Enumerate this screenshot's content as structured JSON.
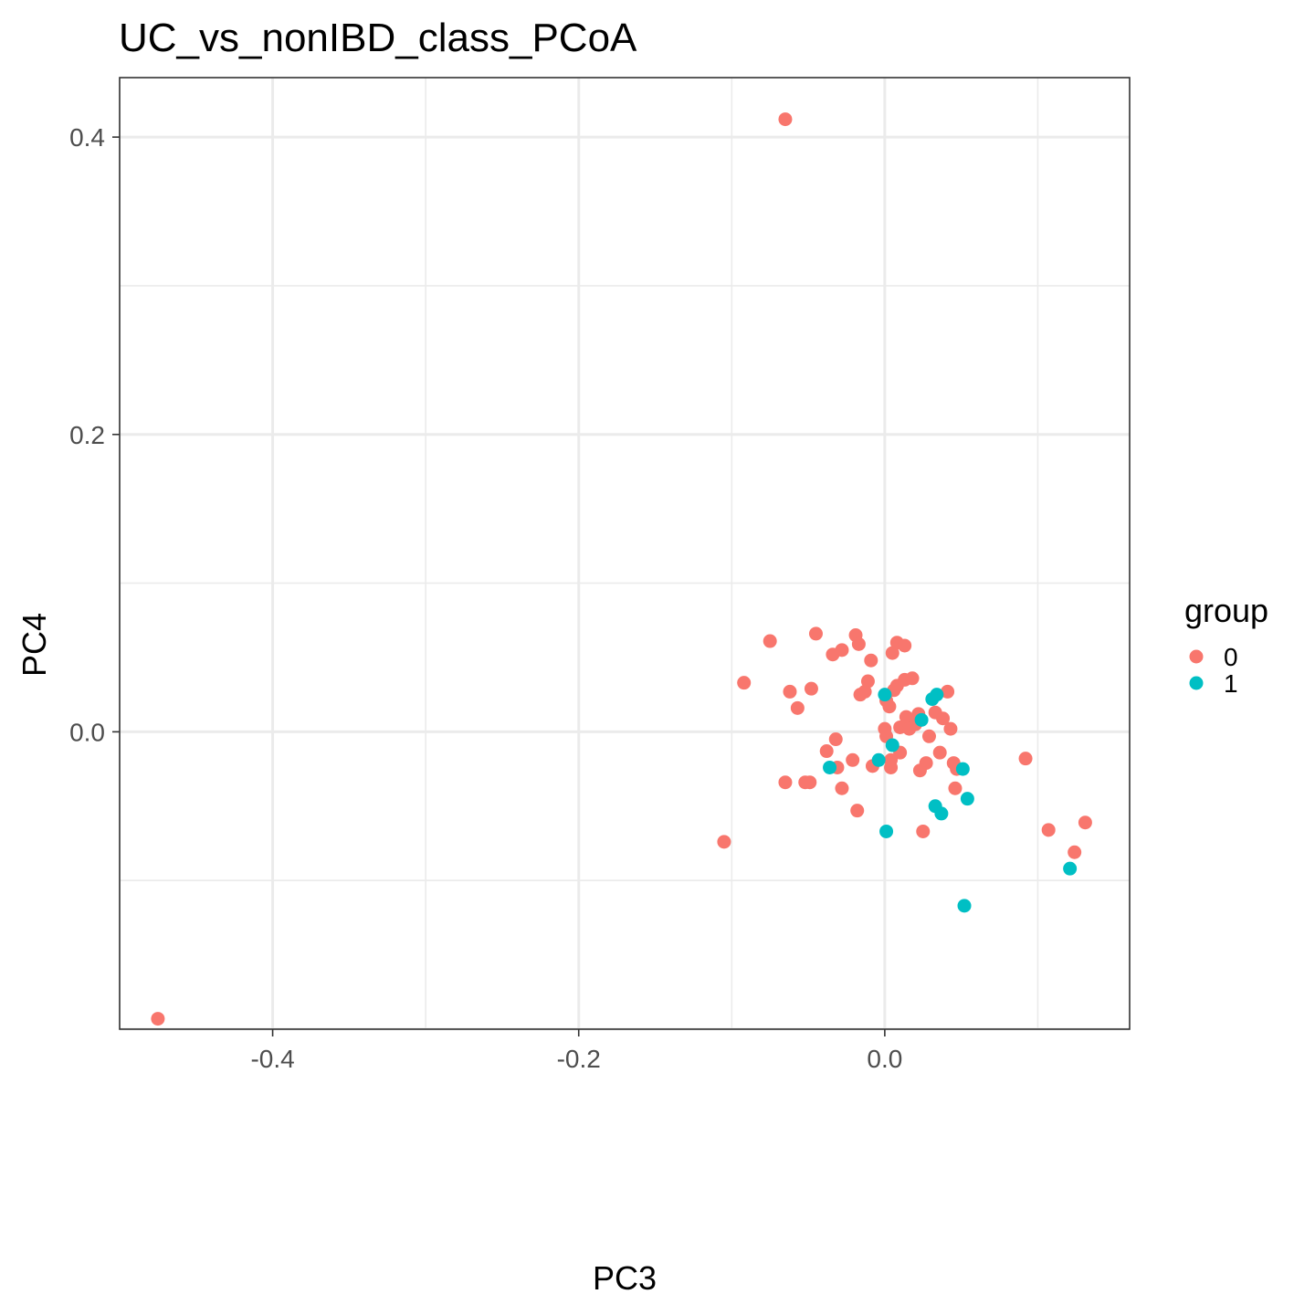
{
  "chart_data": {
    "type": "scatter",
    "title": "UC_vs_nonIBD_class_PCoA",
    "xlabel": "PC3",
    "ylabel": "PC4",
    "xlim": [
      -0.5,
      0.16
    ],
    "ylim": [
      -0.2,
      0.44
    ],
    "x_ticks": [
      -0.4,
      -0.2,
      0.0
    ],
    "x_tick_labels": [
      "-0.4",
      "-0.2",
      "0.0"
    ],
    "y_ticks": [
      0.0,
      0.2,
      0.4
    ],
    "y_tick_labels": [
      "0.0",
      "0.2",
      "0.4"
    ],
    "grid": true,
    "legend": {
      "title": "group",
      "position": "right",
      "entries": [
        {
          "label": "0",
          "color": "#F8766D"
        },
        {
          "label": "1",
          "color": "#00BFC4"
        }
      ]
    },
    "series": [
      {
        "name": "0",
        "color": "#F8766D",
        "points": [
          [
            -0.065,
            0.412
          ],
          [
            -0.475,
            -0.193
          ],
          [
            -0.045,
            0.066
          ],
          [
            -0.075,
            0.061
          ],
          [
            -0.019,
            0.065
          ],
          [
            -0.017,
            0.059
          ],
          [
            -0.028,
            0.055
          ],
          [
            -0.034,
            0.052
          ],
          [
            0.008,
            0.06
          ],
          [
            0.013,
            0.058
          ],
          [
            0.005,
            0.053
          ],
          [
            -0.009,
            0.048
          ],
          [
            -0.092,
            0.033
          ],
          [
            -0.062,
            0.027
          ],
          [
            -0.048,
            0.029
          ],
          [
            -0.057,
            0.016
          ],
          [
            -0.011,
            0.034
          ],
          [
            -0.016,
            0.025
          ],
          [
            -0.013,
            0.027
          ],
          [
            0.013,
            0.035
          ],
          [
            0.018,
            0.036
          ],
          [
            0.008,
            0.031
          ],
          [
            0.006,
            0.028
          ],
          [
            0.041,
            0.027
          ],
          [
            0.001,
            0.021
          ],
          [
            0.003,
            0.017
          ],
          [
            0.014,
            0.01
          ],
          [
            0.022,
            0.012
          ],
          [
            0.033,
            0.013
          ],
          [
            0.038,
            0.009
          ],
          [
            0.01,
            0.003
          ],
          [
            0.016,
            0.002
          ],
          [
            0.02,
            0.005
          ],
          [
            0.043,
            0.002
          ],
          [
            0.0,
            0.002
          ],
          [
            0.001,
            -0.003
          ],
          [
            0.029,
            -0.003
          ],
          [
            -0.032,
            -0.005
          ],
          [
            -0.038,
            -0.013
          ],
          [
            0.01,
            -0.014
          ],
          [
            0.036,
            -0.014
          ],
          [
            -0.021,
            -0.019
          ],
          [
            0.004,
            -0.019
          ],
          [
            0.027,
            -0.021
          ],
          [
            0.045,
            -0.021
          ],
          [
            0.092,
            -0.018
          ],
          [
            -0.031,
            -0.024
          ],
          [
            -0.008,
            -0.023
          ],
          [
            0.004,
            -0.024
          ],
          [
            0.023,
            -0.026
          ],
          [
            0.047,
            -0.025
          ],
          [
            -0.065,
            -0.034
          ],
          [
            -0.049,
            -0.034
          ],
          [
            -0.052,
            -0.034
          ],
          [
            -0.028,
            -0.038
          ],
          [
            0.046,
            -0.038
          ],
          [
            -0.018,
            -0.053
          ],
          [
            -0.105,
            -0.074
          ],
          [
            0.025,
            -0.067
          ],
          [
            0.107,
            -0.066
          ],
          [
            0.131,
            -0.061
          ],
          [
            0.124,
            -0.081
          ]
        ]
      },
      {
        "name": "1",
        "color": "#00BFC4",
        "points": [
          [
            0.034,
            0.025
          ],
          [
            0.031,
            0.022
          ],
          [
            0.0,
            0.025
          ],
          [
            0.024,
            0.008
          ],
          [
            0.005,
            -0.009
          ],
          [
            -0.004,
            -0.019
          ],
          [
            -0.036,
            -0.024
          ],
          [
            0.051,
            -0.025
          ],
          [
            0.054,
            -0.045
          ],
          [
            0.033,
            -0.05
          ],
          [
            0.037,
            -0.055
          ],
          [
            0.001,
            -0.067
          ],
          [
            0.121,
            -0.092
          ],
          [
            0.052,
            -0.117
          ]
        ]
      }
    ]
  }
}
